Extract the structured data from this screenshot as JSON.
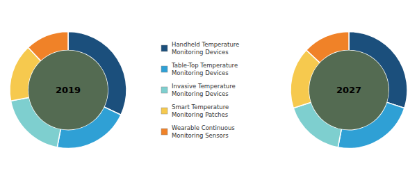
{
  "chart_data": {
    "type": "donut",
    "categories": [
      "Handheld Temperature\nMonitoring Devices",
      "Table-Top Temperature\nMonitoring Devices",
      "Invasive Temperature\nMonitoring Devices",
      "Smart Temperature\nMonitoring Patches",
      "Wearable Continuous\nMonitoring Sensors"
    ],
    "series": [
      {
        "name": "2019",
        "values": [
          32,
          21,
          19,
          16,
          12
        ]
      },
      {
        "name": "2027",
        "values": [
          30,
          23,
          17,
          17,
          13
        ]
      }
    ],
    "colors": [
      "#1b4f7c",
      "#2fa0d5",
      "#7ecfcf",
      "#f6c94e",
      "#f08228"
    ],
    "legend": "center"
  }
}
